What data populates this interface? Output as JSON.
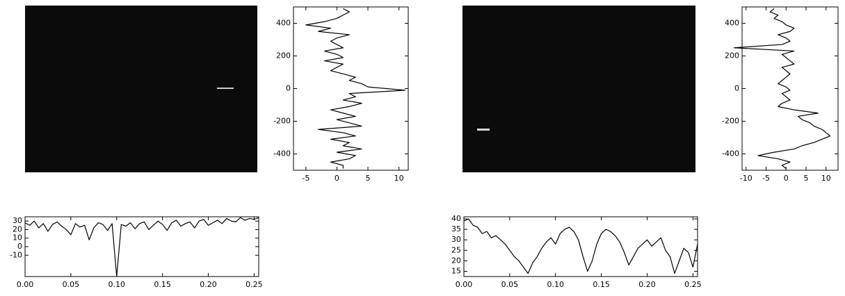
{
  "chart_data": [
    {
      "type": "line",
      "orientation": "vertical",
      "color": "#000000",
      "y": [
        -490,
        -470,
        -450,
        -430,
        -410,
        -390,
        -370,
        -350,
        -330,
        -310,
        -290,
        -270,
        -250,
        -230,
        -210,
        -190,
        -170,
        -150,
        -130,
        -110,
        -90,
        -70,
        -50,
        -30,
        -10,
        10,
        30,
        50,
        70,
        90,
        110,
        130,
        150,
        170,
        190,
        210,
        230,
        250,
        270,
        290,
        310,
        330,
        350,
        370,
        390,
        410,
        430,
        450,
        470,
        490
      ],
      "values": [
        1,
        1,
        -1,
        2,
        3,
        0,
        4,
        1,
        2,
        -1,
        3,
        1,
        -3,
        4,
        2,
        0,
        3,
        1,
        -1,
        2,
        4,
        1,
        3,
        2,
        11,
        5,
        4,
        2,
        3,
        1,
        -1,
        0,
        1,
        -2,
        1,
        0,
        -2,
        1,
        0,
        -1,
        0,
        2,
        -3,
        -1,
        -5,
        -2,
        0,
        1,
        2,
        1
      ],
      "xlim": [
        -7,
        11.5
      ],
      "xticks": [
        -5,
        0,
        5,
        10
      ],
      "ylim": [
        -500,
        500
      ],
      "yticks": [
        -400,
        -200,
        0,
        200,
        400
      ]
    },
    {
      "type": "line",
      "color": "#000000",
      "x": [
        0,
        0.005,
        0.01,
        0.015,
        0.02,
        0.025,
        0.03,
        0.035,
        0.04,
        0.045,
        0.05,
        0.055,
        0.06,
        0.065,
        0.07,
        0.075,
        0.08,
        0.085,
        0.09,
        0.095,
        0.1,
        0.105,
        0.11,
        0.115,
        0.12,
        0.125,
        0.13,
        0.135,
        0.14,
        0.145,
        0.15,
        0.155,
        0.16,
        0.165,
        0.17,
        0.175,
        0.18,
        0.185,
        0.19,
        0.195,
        0.2,
        0.205,
        0.21,
        0.215,
        0.22,
        0.225,
        0.23,
        0.235,
        0.24,
        0.245,
        0.25,
        0.255
      ],
      "values": [
        28,
        25,
        30,
        22,
        27,
        18,
        26,
        29,
        24,
        20,
        14,
        27,
        23,
        25,
        8,
        22,
        28,
        26,
        19,
        27,
        -35,
        26,
        24,
        28,
        21,
        27,
        29,
        20,
        25,
        30,
        26,
        19,
        28,
        31,
        24,
        27,
        29,
        22,
        30,
        32,
        25,
        28,
        31,
        27,
        33,
        30,
        29,
        34,
        31,
        33,
        32,
        34
      ],
      "xlim": [
        0,
        0.255
      ],
      "xticks": [
        {
          "value": 0,
          "label": "0.00"
        },
        {
          "value": 0.05,
          "label": "0.05"
        },
        {
          "value": 0.1,
          "label": "0.10"
        },
        {
          "value": 0.15,
          "label": "0.15"
        },
        {
          "value": 0.2,
          "label": "0.20"
        },
        {
          "value": 0.25,
          "label": "0.25"
        }
      ],
      "ylim": [
        -35,
        35
      ],
      "yticks": [
        -10,
        0,
        10,
        20,
        30
      ]
    },
    {
      "type": "line",
      "orientation": "vertical",
      "color": "#000000",
      "y": [
        -490,
        -470,
        -450,
        -430,
        -410,
        -390,
        -370,
        -350,
        -330,
        -310,
        -290,
        -270,
        -250,
        -230,
        -210,
        -190,
        -170,
        -150,
        -130,
        -110,
        -90,
        -70,
        -50,
        -30,
        -10,
        10,
        30,
        50,
        70,
        90,
        110,
        130,
        150,
        170,
        190,
        210,
        230,
        250,
        270,
        290,
        310,
        330,
        350,
        370,
        390,
        410,
        430,
        450,
        470,
        490
      ],
      "values": [
        0,
        -1,
        1,
        -2,
        -7,
        -3,
        2,
        4,
        7,
        9,
        11,
        10,
        9,
        7,
        6,
        4,
        3,
        8,
        2,
        -2,
        -1,
        1,
        0,
        -1,
        1,
        0,
        -2,
        -1,
        0,
        1,
        0,
        -1,
        2,
        1,
        0,
        -1,
        2,
        -13,
        -1,
        1,
        0,
        -2,
        1,
        2,
        0,
        -1,
        -3,
        -2,
        -4,
        -3
      ],
      "xlim": [
        -11,
        13
      ],
      "xticks": [
        -10,
        -5,
        0,
        5,
        10
      ],
      "ylim": [
        -500,
        500
      ],
      "yticks": [
        -400,
        -200,
        0,
        200,
        400
      ]
    },
    {
      "type": "line",
      "color": "#000000",
      "x": [
        0,
        0.005,
        0.01,
        0.015,
        0.02,
        0.025,
        0.03,
        0.035,
        0.04,
        0.045,
        0.05,
        0.055,
        0.06,
        0.065,
        0.07,
        0.075,
        0.08,
        0.085,
        0.09,
        0.095,
        0.1,
        0.105,
        0.11,
        0.115,
        0.12,
        0.125,
        0.13,
        0.135,
        0.14,
        0.145,
        0.15,
        0.155,
        0.16,
        0.165,
        0.17,
        0.175,
        0.18,
        0.185,
        0.19,
        0.195,
        0.2,
        0.205,
        0.21,
        0.215,
        0.22,
        0.225,
        0.23,
        0.235,
        0.24,
        0.245,
        0.25,
        0.255
      ],
      "values": [
        39,
        40,
        37,
        36,
        33,
        34,
        31,
        32,
        30,
        28,
        25,
        22,
        20,
        17,
        14,
        19,
        22,
        26,
        29,
        31,
        28,
        33,
        35,
        36,
        34,
        30,
        22,
        15,
        20,
        28,
        33,
        35,
        34,
        32,
        29,
        24,
        18,
        22,
        26,
        28,
        30,
        27,
        29,
        31,
        25,
        22,
        14,
        20,
        26,
        24,
        17,
        28
      ],
      "xlim": [
        0,
        0.255
      ],
      "xticks": [
        {
          "value": 0,
          "label": "0.00"
        },
        {
          "value": 0.05,
          "label": "0.05"
        },
        {
          "value": 0.1,
          "label": "0.10"
        },
        {
          "value": 0.15,
          "label": "0.15"
        },
        {
          "value": 0.2,
          "label": "0.20"
        },
        {
          "value": 0.25,
          "label": "0.25"
        }
      ],
      "ylim": [
        12.5,
        41
      ],
      "yticks": [
        15,
        20,
        25,
        30,
        35,
        40
      ]
    }
  ]
}
